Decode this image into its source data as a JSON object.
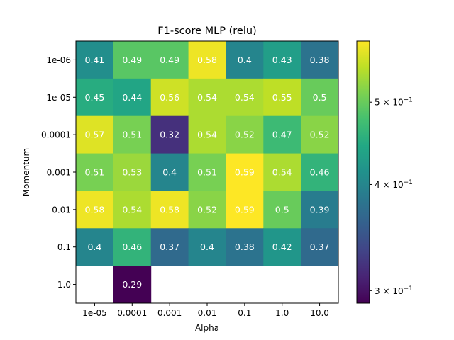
{
  "chart_data": {
    "type": "heatmap",
    "title": "F1-score MLP (relu)",
    "xlabel": "Alpha",
    "ylabel": "Momentum",
    "x_categories": [
      "1e-05",
      "0.0001",
      "0.001",
      "0.01",
      "0.1",
      "1.0",
      "10.0"
    ],
    "y_categories": [
      "1e-06",
      "1e-05",
      "0.0001",
      "0.001",
      "0.01",
      "0.1",
      "1.0"
    ],
    "values": [
      [
        0.41,
        0.49,
        0.49,
        0.58,
        0.4,
        0.43,
        0.38
      ],
      [
        0.45,
        0.44,
        0.56,
        0.54,
        0.54,
        0.55,
        0.5
      ],
      [
        0.57,
        0.51,
        0.32,
        0.54,
        0.52,
        0.47,
        0.52
      ],
      [
        0.51,
        0.53,
        0.4,
        0.51,
        0.59,
        0.54,
        0.46
      ],
      [
        0.58,
        0.54,
        0.58,
        0.52,
        0.59,
        0.5,
        0.39
      ],
      [
        0.4,
        0.46,
        0.37,
        0.4,
        0.38,
        0.42,
        0.37
      ],
      [
        null,
        0.29,
        null,
        null,
        null,
        null,
        null
      ]
    ],
    "color_scale": "viridis",
    "color_scale_type": "log",
    "color_range": [
      0.29,
      0.59
    ],
    "colorbar": {
      "ticks": [
        {
          "value": 0.3,
          "mantissa": "3",
          "exponent": "−1"
        },
        {
          "value": 0.4,
          "mantissa": "4",
          "exponent": "−1"
        },
        {
          "value": 0.5,
          "mantissa": "5",
          "exponent": "−1"
        }
      ]
    }
  }
}
